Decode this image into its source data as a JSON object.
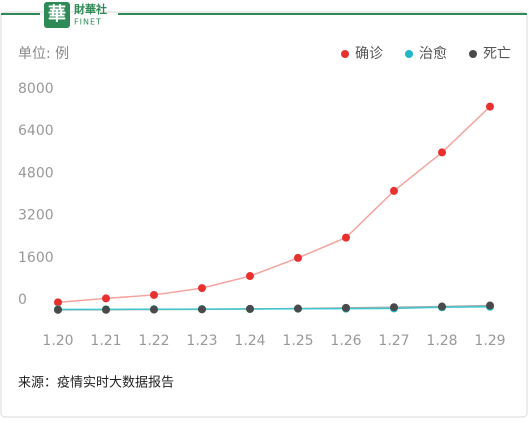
{
  "header": {
    "logo": "華",
    "brand": "財華社",
    "brand_en": "FINET"
  },
  "chart_data": {
    "type": "line",
    "ylabel": "单位: 例",
    "categories": [
      "1.20",
      "1.21",
      "1.22",
      "1.23",
      "1.24",
      "1.25",
      "1.26",
      "1.27",
      "1.28",
      "1.29"
    ],
    "series": [
      {
        "name": "确诊",
        "color": "#e8312f",
        "line_color": "#f4a39d",
        "values": [
          291,
          440,
          571,
          830,
          1287,
          1975,
          2744,
          4515,
          5974,
          7711
        ]
      },
      {
        "name": "治愈",
        "color": "#1fb8c3",
        "line_color": "#3fc6ce",
        "values": [
          25,
          25,
          28,
          34,
          38,
          49,
          51,
          60,
          103,
          124
        ]
      },
      {
        "name": "死亡",
        "color": "#4a4a4a",
        "line_color": "#aaaaaa",
        "values": [
          6,
          9,
          17,
          25,
          41,
          56,
          80,
          106,
          132,
          170
        ]
      }
    ],
    "ylim": [
      0,
      8000
    ],
    "yticks": [
      0,
      1600,
      3200,
      4800,
      6400,
      8000
    ],
    "grid": false,
    "legend": "top-right"
  },
  "footer": {
    "source": "来源：疫情实时大数据报告"
  }
}
